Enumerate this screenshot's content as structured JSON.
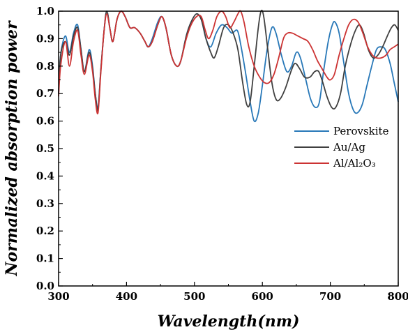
{
  "chart_data": {
    "type": "line",
    "title": "",
    "xlabel": "Wavelength(nm)",
    "ylabel": "Normalized absorption power",
    "xlim": [
      300,
      800
    ],
    "ylim": [
      0,
      1.0
    ],
    "x_ticks": [
      "300",
      "400",
      "500",
      "600",
      "700",
      "800"
    ],
    "y_ticks": [
      "0.0",
      "0.1",
      "0.2",
      "0.3",
      "0.4",
      "0.5",
      "0.6",
      "0.7",
      "0.8",
      "0.9",
      "1.0"
    ],
    "legend_position": "center-right",
    "grid": false,
    "series": [
      {
        "name": "Perovskite",
        "color": "#2878b8",
        "points": [
          [
            300,
            0.7
          ],
          [
            303,
            0.84
          ],
          [
            310,
            0.91
          ],
          [
            316,
            0.85
          ],
          [
            322,
            0.92
          ],
          [
            328,
            0.95
          ],
          [
            333,
            0.86
          ],
          [
            338,
            0.78
          ],
          [
            345,
            0.86
          ],
          [
            350,
            0.8
          ],
          [
            354,
            0.7
          ],
          [
            358,
            0.65
          ],
          [
            362,
            0.78
          ],
          [
            367,
            0.93
          ],
          [
            371,
            1.0
          ],
          [
            376,
            0.93
          ],
          [
            380,
            0.89
          ],
          [
            386,
            0.97
          ],
          [
            392,
            1.0
          ],
          [
            398,
            0.98
          ],
          [
            405,
            0.94
          ],
          [
            412,
            0.94
          ],
          [
            420,
            0.92
          ],
          [
            427,
            0.89
          ],
          [
            432,
            0.87
          ],
          [
            438,
            0.9
          ],
          [
            446,
            0.96
          ],
          [
            452,
            0.98
          ],
          [
            458,
            0.94
          ],
          [
            466,
            0.84
          ],
          [
            474,
            0.8
          ],
          [
            480,
            0.82
          ],
          [
            488,
            0.91
          ],
          [
            495,
            0.96
          ],
          [
            503,
            0.99
          ],
          [
            510,
            0.97
          ],
          [
            517,
            0.9
          ],
          [
            524,
            0.87
          ],
          [
            532,
            0.92
          ],
          [
            540,
            0.95
          ],
          [
            548,
            0.94
          ],
          [
            555,
            0.92
          ],
          [
            563,
            0.93
          ],
          [
            568,
            0.88
          ],
          [
            575,
            0.78
          ],
          [
            582,
            0.67
          ],
          [
            588,
            0.6
          ],
          [
            594,
            0.63
          ],
          [
            600,
            0.73
          ],
          [
            607,
            0.86
          ],
          [
            614,
            0.94
          ],
          [
            620,
            0.92
          ],
          [
            628,
            0.84
          ],
          [
            636,
            0.78
          ],
          [
            643,
            0.8
          ],
          [
            650,
            0.85
          ],
          [
            656,
            0.83
          ],
          [
            664,
            0.75
          ],
          [
            671,
            0.68
          ],
          [
            678,
            0.65
          ],
          [
            684,
            0.67
          ],
          [
            690,
            0.78
          ],
          [
            697,
            0.89
          ],
          [
            703,
            0.95
          ],
          [
            707,
            0.96
          ],
          [
            713,
            0.92
          ],
          [
            720,
            0.81
          ],
          [
            727,
            0.7
          ],
          [
            734,
            0.64
          ],
          [
            740,
            0.63
          ],
          [
            747,
            0.66
          ],
          [
            754,
            0.73
          ],
          [
            761,
            0.8
          ],
          [
            768,
            0.86
          ],
          [
            775,
            0.87
          ],
          [
            781,
            0.86
          ],
          [
            788,
            0.81
          ],
          [
            794,
            0.74
          ],
          [
            800,
            0.67
          ]
        ]
      },
      {
        "name": "Au/Ag",
        "color": "#404040",
        "points": [
          [
            300,
            0.7
          ],
          [
            303,
            0.84
          ],
          [
            310,
            0.89
          ],
          [
            316,
            0.84
          ],
          [
            322,
            0.91
          ],
          [
            328,
            0.94
          ],
          [
            333,
            0.86
          ],
          [
            338,
            0.78
          ],
          [
            345,
            0.85
          ],
          [
            350,
            0.79
          ],
          [
            354,
            0.7
          ],
          [
            358,
            0.64
          ],
          [
            362,
            0.78
          ],
          [
            367,
            0.93
          ],
          [
            371,
            1.0
          ],
          [
            376,
            0.93
          ],
          [
            380,
            0.89
          ],
          [
            386,
            0.97
          ],
          [
            392,
            1.0
          ],
          [
            398,
            0.98
          ],
          [
            405,
            0.94
          ],
          [
            412,
            0.94
          ],
          [
            420,
            0.92
          ],
          [
            427,
            0.89
          ],
          [
            432,
            0.87
          ],
          [
            438,
            0.89
          ],
          [
            446,
            0.95
          ],
          [
            452,
            0.98
          ],
          [
            458,
            0.94
          ],
          [
            466,
            0.84
          ],
          [
            474,
            0.8
          ],
          [
            480,
            0.82
          ],
          [
            488,
            0.91
          ],
          [
            495,
            0.96
          ],
          [
            503,
            0.99
          ],
          [
            510,
            0.97
          ],
          [
            517,
            0.9
          ],
          [
            524,
            0.85
          ],
          [
            529,
            0.83
          ],
          [
            535,
            0.87
          ],
          [
            543,
            0.94
          ],
          [
            550,
            0.95
          ],
          [
            557,
            0.92
          ],
          [
            564,
            0.86
          ],
          [
            571,
            0.74
          ],
          [
            577,
            0.66
          ],
          [
            582,
            0.67
          ],
          [
            588,
            0.8
          ],
          [
            594,
            0.94
          ],
          [
            598,
            1.0
          ],
          [
            602,
            0.98
          ],
          [
            608,
            0.86
          ],
          [
            614,
            0.74
          ],
          [
            620,
            0.68
          ],
          [
            626,
            0.68
          ],
          [
            634,
            0.72
          ],
          [
            642,
            0.78
          ],
          [
            648,
            0.81
          ],
          [
            655,
            0.79
          ],
          [
            662,
            0.76
          ],
          [
            670,
            0.76
          ],
          [
            677,
            0.78
          ],
          [
            683,
            0.78
          ],
          [
            689,
            0.74
          ],
          [
            695,
            0.69
          ],
          [
            702,
            0.65
          ],
          [
            708,
            0.65
          ],
          [
            715,
            0.7
          ],
          [
            722,
            0.8
          ],
          [
            730,
            0.88
          ],
          [
            737,
            0.93
          ],
          [
            743,
            0.95
          ],
          [
            749,
            0.92
          ],
          [
            756,
            0.86
          ],
          [
            763,
            0.83
          ],
          [
            770,
            0.84
          ],
          [
            777,
            0.87
          ],
          [
            784,
            0.91
          ],
          [
            790,
            0.94
          ],
          [
            795,
            0.95
          ],
          [
            800,
            0.93
          ]
        ]
      },
      {
        "name": "Al/Al₂O₃",
        "color": "#cc3333",
        "points": [
          [
            300,
            0.69
          ],
          [
            303,
            0.8
          ],
          [
            310,
            0.89
          ],
          [
            316,
            0.8
          ],
          [
            322,
            0.89
          ],
          [
            328,
            0.93
          ],
          [
            333,
            0.84
          ],
          [
            338,
            0.77
          ],
          [
            345,
            0.84
          ],
          [
            350,
            0.78
          ],
          [
            354,
            0.68
          ],
          [
            358,
            0.63
          ],
          [
            362,
            0.77
          ],
          [
            367,
            0.93
          ],
          [
            371,
            0.99
          ],
          [
            376,
            0.93
          ],
          [
            380,
            0.89
          ],
          [
            386,
            0.97
          ],
          [
            392,
            1.0
          ],
          [
            398,
            0.98
          ],
          [
            405,
            0.94
          ],
          [
            412,
            0.94
          ],
          [
            420,
            0.92
          ],
          [
            427,
            0.89
          ],
          [
            432,
            0.87
          ],
          [
            438,
            0.89
          ],
          [
            446,
            0.95
          ],
          [
            452,
            0.98
          ],
          [
            458,
            0.94
          ],
          [
            466,
            0.84
          ],
          [
            474,
            0.8
          ],
          [
            480,
            0.82
          ],
          [
            488,
            0.9
          ],
          [
            495,
            0.95
          ],
          [
            503,
            0.98
          ],
          [
            510,
            0.98
          ],
          [
            516,
            0.93
          ],
          [
            521,
            0.9
          ],
          [
            527,
            0.93
          ],
          [
            533,
            0.98
          ],
          [
            540,
            1.0
          ],
          [
            546,
            0.98
          ],
          [
            552,
            0.94
          ],
          [
            558,
            0.96
          ],
          [
            564,
            0.99
          ],
          [
            568,
            1.0
          ],
          [
            573,
            0.96
          ],
          [
            580,
            0.87
          ],
          [
            588,
            0.8
          ],
          [
            596,
            0.76
          ],
          [
            603,
            0.74
          ],
          [
            610,
            0.74
          ],
          [
            617,
            0.77
          ],
          [
            624,
            0.83
          ],
          [
            631,
            0.9
          ],
          [
            637,
            0.92
          ],
          [
            644,
            0.92
          ],
          [
            652,
            0.91
          ],
          [
            660,
            0.9
          ],
          [
            667,
            0.89
          ],
          [
            674,
            0.86
          ],
          [
            681,
            0.82
          ],
          [
            688,
            0.79
          ],
          [
            695,
            0.76
          ],
          [
            700,
            0.75
          ],
          [
            706,
            0.77
          ],
          [
            713,
            0.84
          ],
          [
            720,
            0.9
          ],
          [
            727,
            0.95
          ],
          [
            734,
            0.97
          ],
          [
            741,
            0.96
          ],
          [
            748,
            0.92
          ],
          [
            755,
            0.87
          ],
          [
            762,
            0.84
          ],
          [
            768,
            0.83
          ],
          [
            775,
            0.83
          ],
          [
            782,
            0.84
          ],
          [
            788,
            0.86
          ],
          [
            794,
            0.87
          ],
          [
            800,
            0.88
          ]
        ]
      }
    ]
  }
}
